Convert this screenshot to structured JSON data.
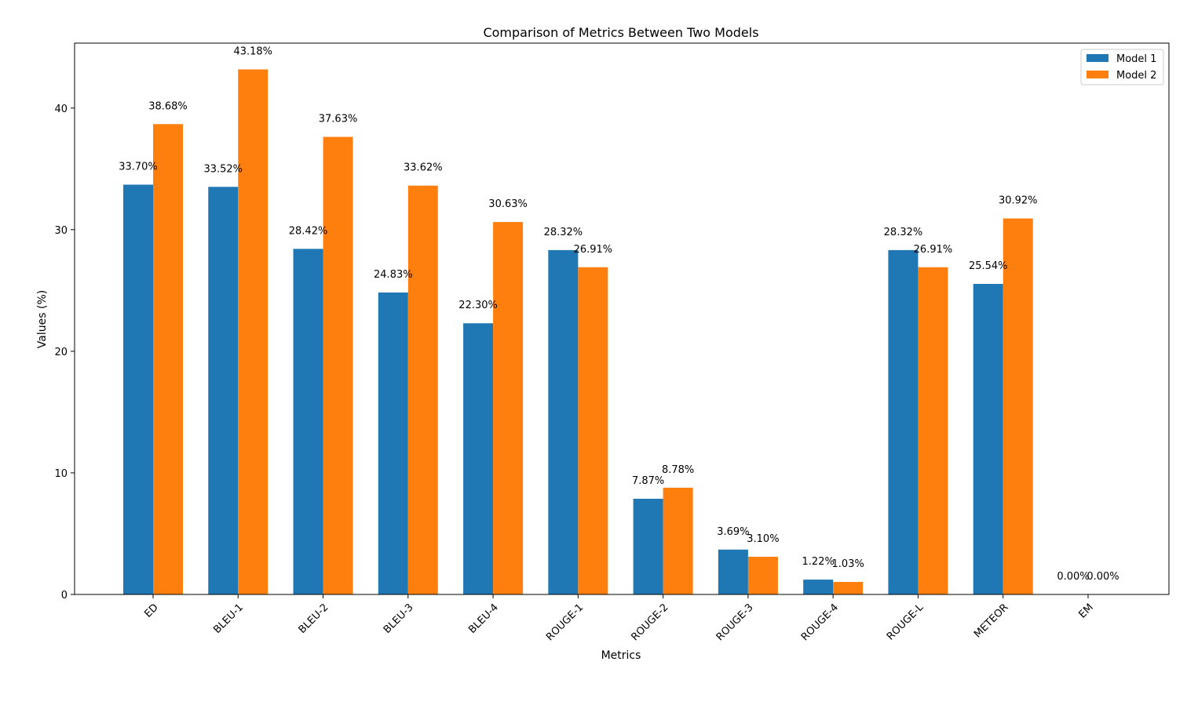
{
  "chart_data": {
    "type": "bar",
    "title": "Comparison of Metrics Between Two Models",
    "xlabel": "Metrics",
    "ylabel": "Values (%)",
    "ylim": [
      0,
      45.34
    ],
    "yticks": [
      0,
      10,
      20,
      30,
      40
    ],
    "grid": false,
    "legend_position": "top-right",
    "categories": [
      "ED",
      "BLEU-1",
      "BLEU-2",
      "BLEU-3",
      "BLEU-4",
      "ROUGE-1",
      "ROUGE-2",
      "ROUGE-3",
      "ROUGE-4",
      "ROUGE-L",
      "METEOR",
      "EM"
    ],
    "series": [
      {
        "name": "Model 1",
        "color": "#1f77b4",
        "values": [
          33.7,
          33.52,
          28.42,
          24.83,
          22.3,
          28.32,
          7.87,
          3.69,
          1.22,
          28.32,
          25.54,
          0.0
        ],
        "labels": [
          "33.70%",
          "33.52%",
          "28.42%",
          "24.83%",
          "22.30%",
          "28.32%",
          "7.87%",
          "3.69%",
          "1.22%",
          "28.32%",
          "25.54%",
          "0.00%"
        ]
      },
      {
        "name": "Model 2",
        "color": "#ff7f0e",
        "values": [
          38.68,
          43.18,
          37.63,
          33.62,
          30.63,
          26.91,
          8.78,
          3.1,
          1.03,
          26.91,
          30.92,
          0.0
        ],
        "labels": [
          "38.68%",
          "43.18%",
          "37.63%",
          "33.62%",
          "30.63%",
          "26.91%",
          "8.78%",
          "3.10%",
          "1.03%",
          "26.91%",
          "30.92%",
          "0.00%"
        ]
      }
    ]
  }
}
